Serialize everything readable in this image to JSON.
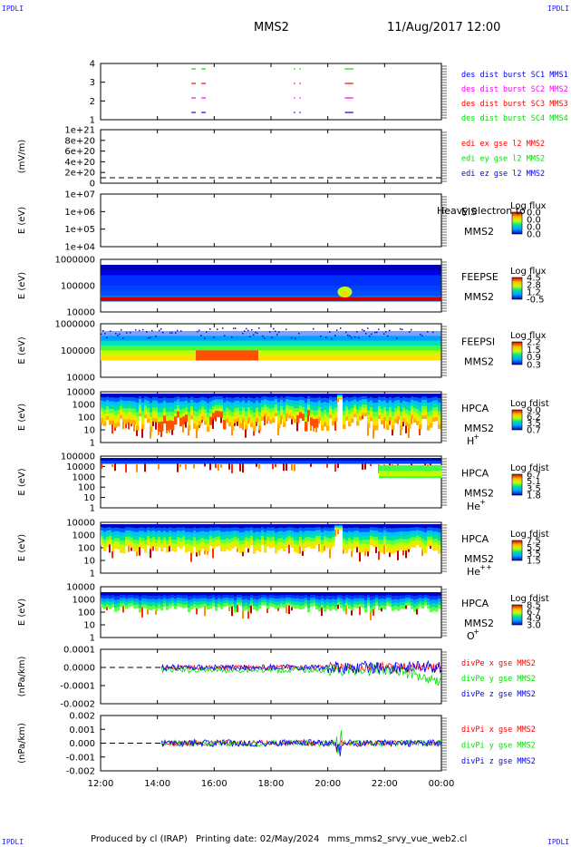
{
  "corner_label": "IPDLI",
  "header": {
    "spacecraft": "MMS2",
    "datetime": "11/Aug/2017 12:00"
  },
  "footer": {
    "produced": "Produced by cl (IRAP)",
    "printing": "Printing date: 02/May/2024",
    "file": "mms_mms2_srvy_vue_web2.cl"
  },
  "colors": {
    "blue": "#0000ff",
    "magenta": "#ff00ff",
    "red": "#ff0000",
    "green": "#00e000"
  },
  "chart_data": [
    {
      "type": "scatter",
      "title": "burst availability",
      "x_labels": [
        "12:00",
        "14:00",
        "16:00",
        "18:00",
        "20:00",
        "22:00",
        "00:00"
      ],
      "y_ticks": [
        "4",
        "3",
        "2",
        "1"
      ],
      "legend": [
        {
          "label": "des dist burst SC1 MMS1",
          "color": "#0000ff"
        },
        {
          "label": "des dist burst SC2 MMS2",
          "color": "#ff00ff"
        },
        {
          "label": "des dist burst SC3 MMS3",
          "color": "#ff0000"
        },
        {
          "label": "des dist burst SC4 MMS4",
          "color": "#00e000"
        }
      ],
      "segments_hours": [
        [
          15.2,
          15.35
        ],
        [
          15.55,
          15.7
        ],
        [
          18.8,
          18.85
        ],
        [
          19.0,
          19.05
        ],
        [
          20.6,
          20.9
        ]
      ]
    },
    {
      "type": "line",
      "ylabel": "(mV/m)",
      "y_ticks": [
        "1e+21",
        "8e+20",
        "6e+20",
        "4e+20",
        "2e+20",
        "0"
      ],
      "legend": [
        {
          "label": "edi ex gse l2 MMS2",
          "color": "#ff0000"
        },
        {
          "label": "edi ey gse l2 MMS2",
          "color": "#00e000"
        },
        {
          "label": "edi ez gse l2 MMS2",
          "color": "#0000ff"
        }
      ]
    },
    {
      "type": "heatmap",
      "ylabel": "E (eV)",
      "y_ticks": [
        "1e+07",
        "1e+06",
        "1e+05",
        "1e+04"
      ],
      "instrument": "EIS",
      "overlay": "Heavy electron to",
      "sc": "MMS2",
      "cbar_title": "Log flux",
      "cbar_ticks": [
        "0.0",
        "0.0",
        "0.0",
        "0.0"
      ]
    },
    {
      "type": "heatmap",
      "ylabel": "E (eV)",
      "y_ticks": [
        "1000000",
        "100000",
        "10000"
      ],
      "instrument": "FEEPSE",
      "sc": "MMS2",
      "cbar_title": "Log flux",
      "cbar_ticks": [
        "4.5",
        "2.8",
        "1.2",
        "-0.5"
      ]
    },
    {
      "type": "heatmap",
      "ylabel": "E (eV)",
      "y_ticks": [
        "1000000",
        "100000",
        "10000"
      ],
      "instrument": "FEEPSI",
      "sc": "MMS2",
      "cbar_title": "Log flux",
      "cbar_ticks": [
        "2.2",
        "1.5",
        "0.9",
        "0.3"
      ]
    },
    {
      "type": "heatmap",
      "ylabel": "E (eV)",
      "y_ticks": [
        "10000",
        "1000",
        "100",
        "10",
        "1"
      ],
      "instrument": "HPCA",
      "sc": "MMS2",
      "species": "H",
      "charge": "+",
      "cbar_title": "Log fdist",
      "cbar_ticks": [
        "9.0",
        "6.2",
        "3.5",
        "0.7"
      ]
    },
    {
      "type": "heatmap",
      "ylabel": "E (eV)",
      "y_ticks": [
        "100000",
        "10000",
        "1000",
        "100",
        "10",
        "1"
      ],
      "instrument": "HPCA",
      "sc": "MMS2",
      "species": "He",
      "charge": "+",
      "cbar_title": "Log fdist",
      "cbar_ticks": [
        "6.7",
        "5.1",
        "3.5",
        "1.8"
      ]
    },
    {
      "type": "heatmap",
      "ylabel": "E (eV)",
      "y_ticks": [
        "10000",
        "1000",
        "100",
        "10",
        "1"
      ],
      "instrument": "HPCA",
      "sc": "MMS2",
      "species": "He",
      "charge": "++",
      "cbar_title": "Log fdist",
      "cbar_ticks": [
        "7.5",
        "5.5",
        "3.5",
        "1.5"
      ]
    },
    {
      "type": "heatmap",
      "ylabel": "E (eV)",
      "y_ticks": [
        "10000",
        "1000",
        "100",
        "10",
        "1"
      ],
      "instrument": "HPCA",
      "sc": "MMS2",
      "species": "O",
      "charge": "+",
      "cbar_title": "Log fdist",
      "cbar_ticks": [
        "8.5",
        "6.7",
        "4.9",
        "3.0"
      ]
    },
    {
      "type": "line",
      "ylabel": "(nPa/km)",
      "y_ticks": [
        "0.0001",
        "0.0000",
        "-0.0001",
        "-0.0002"
      ],
      "legend": [
        {
          "label": "divPe x gse MMS2",
          "color": "#ff0000"
        },
        {
          "label": "divPe y gse MMS2",
          "color": "#00e000"
        },
        {
          "label": "divPe z gse MMS2",
          "color": "#0000ff"
        }
      ]
    },
    {
      "type": "line",
      "ylabel": "(nPa/km)",
      "y_ticks": [
        "0.002",
        "0.001",
        "0.000",
        "-0.001",
        "-0.002"
      ],
      "legend": [
        {
          "label": "divPi x gse MMS2",
          "color": "#ff0000"
        },
        {
          "label": "divPi y gse MMS2",
          "color": "#00e000"
        },
        {
          "label": "divPi z gse MMS2",
          "color": "#0000ff"
        }
      ]
    }
  ]
}
